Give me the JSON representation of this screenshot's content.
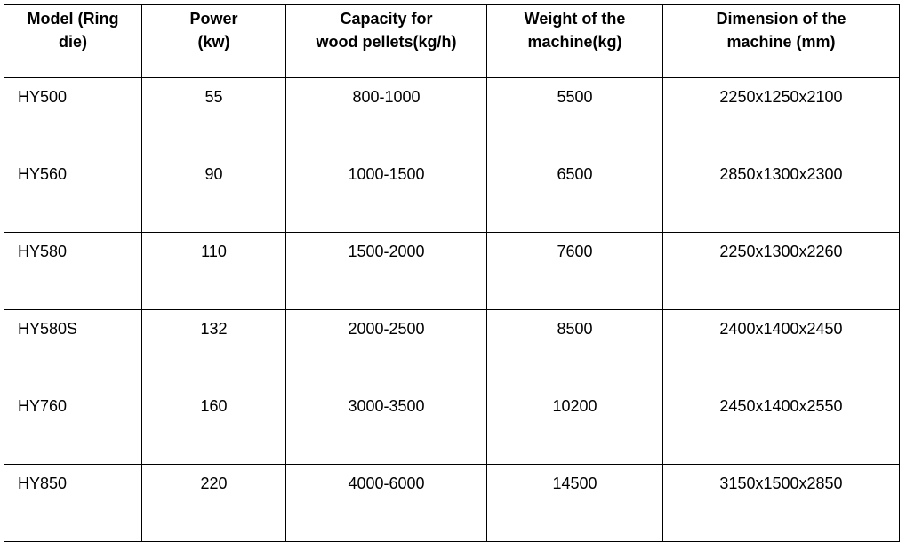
{
  "table": {
    "headers": {
      "model": [
        "Model (Ring",
        "die)"
      ],
      "power": [
        "Power",
        "(kw)"
      ],
      "capacity": [
        "Capacity for",
        "wood pellets(kg/h)"
      ],
      "weight": [
        "Weight of the",
        "machine(kg)"
      ],
      "dimension": [
        "Dimension of the",
        "machine (mm)"
      ]
    },
    "rows": [
      {
        "model": "HY500",
        "power": "55",
        "capacity": "800-1000",
        "weight": "5500",
        "dimension": "2250x1250x2100"
      },
      {
        "model": "HY560",
        "power": "90",
        "capacity": "1000-1500",
        "weight": "6500",
        "dimension": "2850x1300x2300"
      },
      {
        "model": "HY580",
        "power": "110",
        "capacity": "1500-2000",
        "weight": "7600",
        "dimension": "2250x1300x2260"
      },
      {
        "model": "HY580S",
        "power": "132",
        "capacity": "2000-2500",
        "weight": "8500",
        "dimension": "2400x1400x2450"
      },
      {
        "model": "HY760",
        "power": "160",
        "capacity": "3000-3500",
        "weight": "10200",
        "dimension": "2450x1400x2550"
      },
      {
        "model": "HY850",
        "power": "220",
        "capacity": "4000-6000",
        "weight": "14500",
        "dimension": "3150x1500x2850"
      }
    ]
  }
}
